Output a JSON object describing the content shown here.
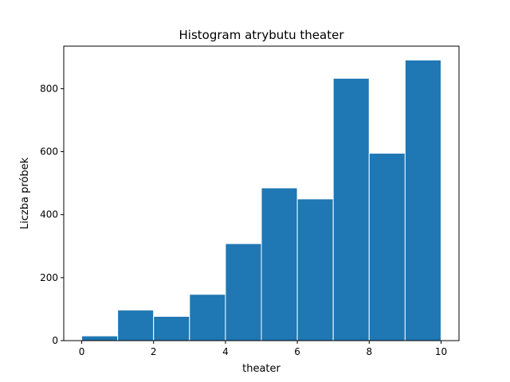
{
  "chart_data": {
    "type": "bar",
    "title": "Histogram atrybutu theater",
    "xlabel": "theater",
    "ylabel": "Liczba próbek",
    "bin_edges": [
      0,
      1,
      2,
      3,
      4,
      5,
      6,
      7,
      8,
      9,
      10
    ],
    "values": [
      15,
      97,
      77,
      147,
      308,
      485,
      450,
      833,
      595,
      891
    ],
    "xlim": [
      -0.5,
      10.5
    ],
    "ylim": [
      0,
      935
    ],
    "x_ticks": [
      0,
      2,
      4,
      6,
      8,
      10
    ],
    "y_ticks": [
      0,
      200,
      400,
      600,
      800
    ],
    "grid": false,
    "bar_color": "#1f77b4",
    "edge_color": "#ffffff"
  }
}
